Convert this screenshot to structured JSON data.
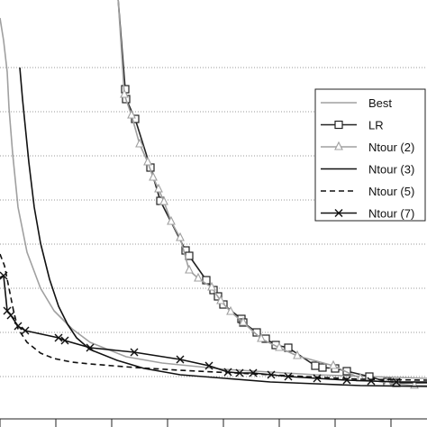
{
  "chart_data": {
    "type": "line",
    "title": "",
    "xlabel": "",
    "ylabel": "",
    "grid": true,
    "legend_position": "right",
    "series": [
      {
        "name": "Best",
        "color": "#a0a0a0",
        "dash": "none",
        "marker": "none",
        "points": [
          [
            0,
            20
          ],
          [
            4,
            45
          ],
          [
            8,
            80
          ],
          [
            10,
            120
          ],
          [
            14,
            170
          ],
          [
            20,
            230
          ],
          [
            30,
            280
          ],
          [
            45,
            320
          ],
          [
            60,
            345
          ],
          [
            80,
            365
          ],
          [
            100,
            380
          ],
          [
            140,
            396
          ],
          [
            180,
            403
          ],
          [
            250,
            410
          ],
          [
            350,
            416
          ],
          [
            474,
            420
          ]
        ]
      },
      {
        "name": "LR",
        "color": "#222222",
        "dash": "none",
        "marker": "square",
        "points": [
          [
            130,
            -15
          ],
          [
            139,
            99
          ],
          [
            140,
            110
          ],
          [
            150,
            132
          ],
          [
            167,
            186
          ],
          [
            178,
            223
          ],
          [
            206,
            278
          ],
          [
            210,
            284
          ],
          [
            229,
            311
          ],
          [
            237,
            322
          ],
          [
            242,
            329
          ],
          [
            248,
            338
          ],
          [
            268,
            354
          ],
          [
            270,
            358
          ],
          [
            285,
            369
          ],
          [
            295,
            376
          ],
          [
            306,
            383
          ],
          [
            320,
            386
          ],
          [
            350,
            406
          ],
          [
            358,
            408
          ],
          [
            372,
            409
          ],
          [
            385,
            412
          ],
          [
            410,
            418
          ],
          [
            430,
            424
          ],
          [
            440,
            425
          ],
          [
            474,
            425
          ]
        ]
      },
      {
        "name": "Ntour (2)",
        "color": "#a0a0a0",
        "dash": "none",
        "marker": "triangle",
        "points": [
          [
            130,
            -18
          ],
          [
            138,
            105
          ],
          [
            146,
            128
          ],
          [
            155,
            160
          ],
          [
            164,
            180
          ],
          [
            170,
            197
          ],
          [
            176,
            210
          ],
          [
            182,
            224
          ],
          [
            190,
            246
          ],
          [
            200,
            264
          ],
          [
            210,
            300
          ],
          [
            220,
            309
          ],
          [
            235,
            319
          ],
          [
            245,
            334
          ],
          [
            256,
            346
          ],
          [
            270,
            358
          ],
          [
            290,
            376
          ],
          [
            310,
            386
          ],
          [
            330,
            395
          ],
          [
            370,
            406
          ],
          [
            400,
            420
          ],
          [
            430,
            425
          ],
          [
            460,
            428
          ],
          [
            474,
            428
          ]
        ]
      },
      {
        "name": "Ntour (3)",
        "color": "#111111",
        "dash": "none",
        "marker": "none",
        "points": [
          [
            22,
            75
          ],
          [
            25,
            110
          ],
          [
            28,
            140
          ],
          [
            32,
            180
          ],
          [
            38,
            230
          ],
          [
            45,
            270
          ],
          [
            55,
            310
          ],
          [
            65,
            340
          ],
          [
            75,
            360
          ],
          [
            85,
            375
          ],
          [
            100,
            388
          ],
          [
            130,
            400
          ],
          [
            160,
            409
          ],
          [
            200,
            416
          ],
          [
            250,
            420
          ],
          [
            300,
            424
          ],
          [
            350,
            426
          ],
          [
            400,
            428
          ],
          [
            474,
            429
          ]
        ]
      },
      {
        "name": "Ntour (5)",
        "color": "#111111",
        "dash": "6 4",
        "marker": "none",
        "points": [
          [
            0,
            282
          ],
          [
            5,
            295
          ],
          [
            10,
            320
          ],
          [
            15,
            345
          ],
          [
            20,
            365
          ],
          [
            30,
            380
          ],
          [
            45,
            392
          ],
          [
            60,
            398
          ],
          [
            80,
            402
          ],
          [
            100,
            404
          ],
          [
            150,
            408
          ],
          [
            200,
            411
          ],
          [
            300,
            416
          ],
          [
            400,
            421
          ],
          [
            474,
            422
          ]
        ]
      },
      {
        "name": "Ntour (7)",
        "color": "#111111",
        "dash": "none",
        "marker": "x",
        "points": [
          [
            0,
            308
          ],
          [
            4,
            306
          ],
          [
            8,
            345
          ],
          [
            12,
            350
          ],
          [
            20,
            362
          ],
          [
            28,
            367
          ],
          [
            65,
            375
          ],
          [
            72,
            378
          ],
          [
            100,
            386
          ],
          [
            149,
            391
          ],
          [
            200,
            399
          ],
          [
            232,
            406
          ],
          [
            253,
            413
          ],
          [
            266,
            414
          ],
          [
            281,
            414
          ],
          [
            301,
            416
          ],
          [
            320,
            418
          ],
          [
            352,
            420
          ],
          [
            385,
            422
          ],
          [
            412,
            423
          ],
          [
            440,
            424
          ],
          [
            474,
            424
          ]
        ]
      }
    ]
  }
}
